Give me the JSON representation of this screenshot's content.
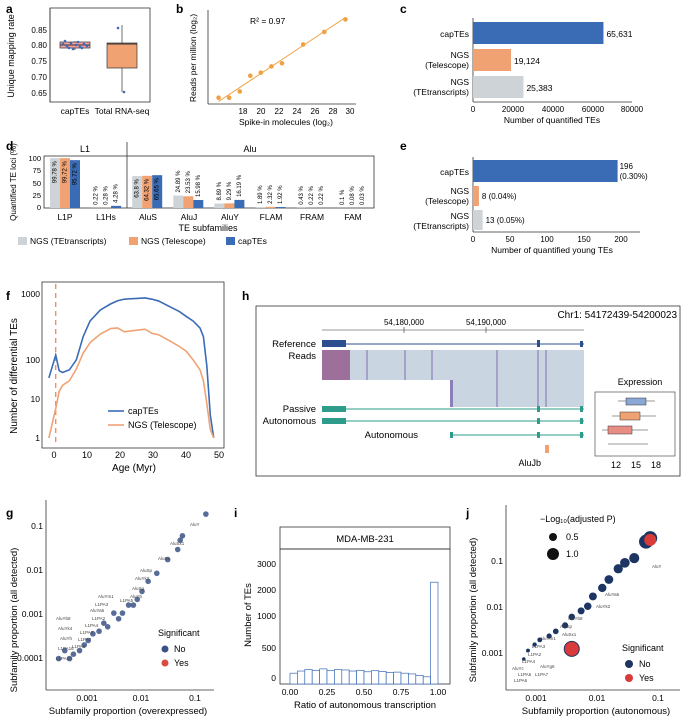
{
  "colors": {
    "blue": "#3a6bb5",
    "orange": "#f0a273",
    "gray": "#cdd3d6",
    "red": "#d93b3b",
    "navy": "#1c3563",
    "teal": "#2d9c8a",
    "dash": "#f07a4f"
  },
  "panels": {
    "a": "a",
    "b": "b",
    "c": "c",
    "d": "d",
    "e": "e",
    "f": "f",
    "g": "g",
    "h": "h",
    "i": "i",
    "j": "j"
  },
  "panel_a": {
    "ylabel": "Unique mapping rate",
    "ticks": [
      "0.85",
      "0.80",
      "0.75",
      "0.70",
      "0.65"
    ],
    "categories": [
      "capTEs",
      "Total RNA-seq"
    ]
  },
  "panel_b": {
    "ylabel": "Reads per million (log₂)",
    "xlabel": "Spike-in molecules (log₂)",
    "r2": "R² = 0.97",
    "xticks": [
      "18",
      "20",
      "22",
      "24",
      "26",
      "28",
      "30"
    ]
  },
  "panel_c": {
    "labels": [
      "capTEs",
      "NGS (Telescope)",
      "NGS (TEtranscripts)"
    ],
    "values_text": [
      "65,631",
      "19,124",
      "25,383"
    ],
    "xticks": [
      "0",
      "20000",
      "40000",
      "60000",
      "80000"
    ],
    "xlabel": "Number of quantified TEs"
  },
  "panel_d": {
    "ylabel": "Quantified TE loci (%)",
    "group_labels": [
      "L1",
      "Alu"
    ],
    "xlabel": "TE subfamilies",
    "yticks": [
      "100",
      "75",
      "50",
      "25",
      "0"
    ],
    "categories": [
      "L1P",
      "L1Hs",
      "AluS",
      "AluJ",
      "AluY",
      "FLAM",
      "FRAM",
      "FAM"
    ],
    "labels_tet": [
      "99.78 %",
      "0.22 %",
      "63.8 %",
      "24.89 %",
      "8.89 %",
      "1.89 %",
      "0.43 %",
      "0.1 %"
    ],
    "labels_tel": [
      "99.72 %",
      "0.28 %",
      "64.32 %",
      "23.53 %",
      "9.29 %",
      "2.32 %",
      "0.22 %",
      "0.08 %"
    ],
    "labels_cap": [
      "95.72 %",
      "4.28 %",
      "65.65 %",
      "15.98 %",
      "16.19 %",
      "1.92 %",
      "0.22 %",
      "0.03 %"
    ],
    "legend": [
      "NGS (TEtranscripts)",
      "NGS (Telescope)",
      "capTEs"
    ]
  },
  "panel_e": {
    "labels": [
      "capTEs",
      "NGS (Telescope)",
      "NGS (TEtranscripts)"
    ],
    "values_text": [
      "196",
      "(0.30%)",
      "8 (0.04%)",
      "13 (0.05%)"
    ],
    "xticks": [
      "0",
      "50",
      "100",
      "150",
      "200"
    ],
    "xlabel": "Number of quantified young TEs"
  },
  "panel_f": {
    "ylabel": "Number of differential TEs",
    "xlabel": "Age (Myr)",
    "yticks": [
      "1000",
      "100",
      "10",
      "1"
    ],
    "xticks": [
      "0",
      "10",
      "20",
      "30",
      "40",
      "50"
    ],
    "legend": [
      "capTEs",
      "NGS (Telescope)"
    ]
  },
  "panel_h": {
    "coord": "Chr1: 54172439-54200023",
    "pos1": "54,180,000",
    "pos2": "54,190,000",
    "rows": [
      "Reference",
      "Reads",
      "Passive",
      "Autonomous",
      "Autonomous"
    ],
    "alu": "AluJb",
    "expr_title": "Expression",
    "expr_ticks": [
      "12",
      "15",
      "18"
    ]
  },
  "panel_g": {
    "ylabel": "Subfamily proportion (all detected)",
    "xlabel": "Subfamily proportion (overexpressed)",
    "yticks": [
      "0.1",
      "0.01",
      "0.001",
      "0.0001"
    ],
    "xticks": [
      "0.001",
      "0.01",
      "0.1"
    ],
    "legend_title": "Significant",
    "legend": [
      "No",
      "Yes"
    ],
    "point_labels": [
      "AluY",
      "AluSx1",
      "AluSz",
      "AluSp",
      "AluYk2",
      "AluSg",
      "AluYb",
      "AluYm1",
      "L1PA3",
      "L1PA5",
      "AluYa5",
      "L1PA2",
      "L1PA4",
      "L1PA6",
      "L1PA7",
      "L1PA8",
      "AluYb8",
      "AluYk4",
      "AluYh",
      "L1PA16",
      "L1PA10"
    ]
  },
  "panel_i": {
    "title": "MDA-MB-231",
    "ylabel": "Number of TEs",
    "xlabel": "Ratio of autonomous transcription",
    "yticks": [
      "3000",
      "2000",
      "1000",
      "500",
      "0"
    ],
    "xticks": [
      "0.00",
      "0.25",
      "0.50",
      "0.75",
      "1.00"
    ]
  },
  "panel_j": {
    "ylabel": "Subfamily proportion (all detected)",
    "xlabel": "Subfamily proportion (autonomous)",
    "yticks": [
      "0.1",
      "0.01",
      "0.001"
    ],
    "xticks": [
      "0.001",
      "0.01",
      "0.1"
    ],
    "size_title": "−Log₁₀(adjusted P)",
    "size_legend": [
      "0.5",
      "1.0"
    ],
    "legend_title": "Significant",
    "legend": [
      "No",
      "Yes"
    ],
    "point_labels": [
      "AluY",
      "AluYa5",
      "AluYk2",
      "AluYb8",
      "AluSp",
      "AluSx1",
      "AluYm1",
      "L1PA3",
      "L1PA2",
      "L1PA4",
      "AluYc",
      "L1PA5",
      "L1PA6",
      "AluYg6",
      "L1PA7"
    ]
  },
  "chart_data": [
    {
      "type": "bar",
      "title": "a",
      "categories": [
        "capTEs",
        "Total RNA-seq"
      ],
      "ylabel": "Unique mapping rate",
      "ylim": [
        0.63,
        0.87
      ],
      "series": [
        {
          "name": "median",
          "values": [
            0.802,
            0.807
          ]
        },
        {
          "name": "q1",
          "values": [
            0.795,
            0.735
          ]
        },
        {
          "name": "q3",
          "values": [
            0.807,
            0.812
          ]
        },
        {
          "name": "whisker_low",
          "values": [
            0.79,
            0.66
          ]
        },
        {
          "name": "whisker_high",
          "values": [
            0.812,
            0.85
          ]
        }
      ]
    },
    {
      "type": "scatter",
      "title": "b",
      "xlabel": "Spike-in molecules (log2)",
      "ylabel": "Reads per million (log2)",
      "xlim": [
        17,
        31
      ],
      "ylim": [
        -1,
        14
      ],
      "x": [
        18,
        19,
        20,
        21,
        22,
        23,
        24,
        26,
        28,
        30
      ],
      "y": [
        0,
        0,
        1,
        3.5,
        4,
        5,
        5.5,
        8.5,
        10.5,
        12.5
      ],
      "annotation": "R2 = 0.97"
    },
    {
      "type": "bar",
      "title": "c",
      "orientation": "horizontal",
      "categories": [
        "capTEs",
        "NGS (Telescope)",
        "NGS (TEtranscripts)"
      ],
      "values": [
        65631,
        19124,
        25383
      ],
      "xlabel": "Number of quantified TEs",
      "xlim": [
        0,
        80000
      ]
    },
    {
      "type": "bar",
      "title": "d",
      "categories": [
        "L1P",
        "L1Hs",
        "AluS",
        "AluJ",
        "AluY",
        "FLAM",
        "FRAM",
        "FAM"
      ],
      "ylabel": "Quantified TE loci (%)",
      "ylim": [
        0,
        100
      ],
      "series": [
        {
          "name": "NGS (TEtranscripts)",
          "values": [
            99.78,
            0.22,
            63.8,
            24.89,
            8.89,
            1.89,
            0.43,
            0.1
          ]
        },
        {
          "name": "NGS (Telescope)",
          "values": [
            99.72,
            0.28,
            64.32,
            23.53,
            9.29,
            2.32,
            0.22,
            0.08
          ]
        },
        {
          "name": "capTEs",
          "values": [
            95.72,
            4.28,
            65.65,
            15.98,
            16.19,
            1.92,
            0.22,
            0.03
          ]
        }
      ]
    },
    {
      "type": "bar",
      "title": "e",
      "orientation": "horizontal",
      "categories": [
        "capTEs",
        "NGS (Telescope)",
        "NGS (TEtranscripts)"
      ],
      "values": [
        196,
        8,
        13
      ],
      "xlabel": "Number of quantified young TEs",
      "xlim": [
        0,
        225
      ]
    },
    {
      "type": "line",
      "title": "f",
      "xlabel": "Age (Myr)",
      "ylabel": "Number of differential TEs",
      "xlim": [
        -2,
        51
      ],
      "ylim": [
        1,
        1500
      ],
      "yscale": "log",
      "x": [
        0,
        2,
        3,
        4,
        6,
        8,
        10,
        12,
        15,
        18,
        20,
        22,
        25,
        28,
        30,
        32,
        35,
        38,
        40,
        42,
        44,
        45,
        46,
        47,
        48
      ],
      "series": [
        {
          "name": "capTEs",
          "values": [
            17,
            50,
            24,
            22,
            25,
            40,
            120,
            250,
            420,
            560,
            650,
            700,
            720,
            740,
            700,
            640,
            500,
            390,
            310,
            250,
            180,
            120,
            30,
            3,
            1
          ]
        },
        {
          "name": "NGS (Telescope)",
          "values": [
            1,
            4,
            9,
            12,
            15,
            26,
            55,
            90,
            135,
            175,
            180,
            150,
            160,
            170,
            140,
            130,
            100,
            75,
            60,
            40,
            25,
            15,
            5,
            1.5,
            1
          ]
        }
      ],
      "annotation": "vertical dashed line at 2 Myr"
    },
    {
      "type": "scatter",
      "title": "g",
      "xlabel": "Subfamily proportion (overexpressed)",
      "ylabel": "Subfamily proportion (all detected)",
      "xscale": "log",
      "yscale": "log",
      "xlim": [
        0.0002,
        0.4
      ],
      "ylim": [
        5e-05,
        0.5
      ],
      "x": [
        0.3,
        0.1,
        0.09,
        0.08,
        0.05,
        0.03,
        0.02,
        0.015,
        0.012,
        0.01,
        0.008,
        0.006,
        0.005,
        0.004,
        0.003,
        0.0025,
        0.002,
        0.0015,
        0.0012,
        0.001,
        0.0008,
        0.0006,
        0.0005,
        0.0004,
        0.0003
      ],
      "y": [
        0.3,
        0.1,
        0.08,
        0.05,
        0.03,
        0.015,
        0.01,
        0.006,
        0.004,
        0.003,
        0.003,
        0.002,
        0.0015,
        0.002,
        0.001,
        0.0012,
        0.0008,
        0.0007,
        0.0005,
        0.0004,
        0.0003,
        0.00025,
        0.0002,
        0.0003,
        0.0002
      ]
    },
    {
      "type": "bar",
      "title": "MDA-MB-231",
      "xlabel": "Ratio of autonomous transcription",
      "ylabel": "Number of TEs",
      "categories": [
        "0.00",
        "0.05",
        "0.10",
        "0.15",
        "0.20",
        "0.25",
        "0.30",
        "0.35",
        "0.40",
        "0.45",
        "0.50",
        "0.55",
        "0.60",
        "0.65",
        "0.70",
        "0.75",
        "0.80",
        "0.85",
        "0.90",
        "0.95"
      ],
      "values": [
        150,
        180,
        200,
        190,
        210,
        185,
        200,
        195,
        180,
        190,
        170,
        185,
        175,
        160,
        165,
        150,
        140,
        120,
        100,
        2300
      ]
    },
    {
      "type": "scatter",
      "title": "j",
      "xlabel": "Subfamily proportion (autonomous)",
      "ylabel": "Subfamily proportion (all detected)",
      "xscale": "log",
      "yscale": "log",
      "xlim": [
        0.0003,
        0.4
      ],
      "ylim": [
        0.0001,
        0.5
      ],
      "x": [
        0.12,
        0.1,
        0.06,
        0.04,
        0.03,
        0.02,
        0.015,
        0.01,
        0.008,
        0.006,
        0.004,
        0.003,
        0.002,
        0.0015,
        0.001,
        0.0008,
        0.0006,
        0.0005,
        0.004
      ],
      "y": [
        0.13,
        0.11,
        0.05,
        0.04,
        0.03,
        0.018,
        0.012,
        0.008,
        0.005,
        0.004,
        0.003,
        0.002,
        0.0015,
        0.0012,
        0.001,
        0.0008,
        0.0006,
        0.0004,
        0.00065
      ]
    }
  ]
}
